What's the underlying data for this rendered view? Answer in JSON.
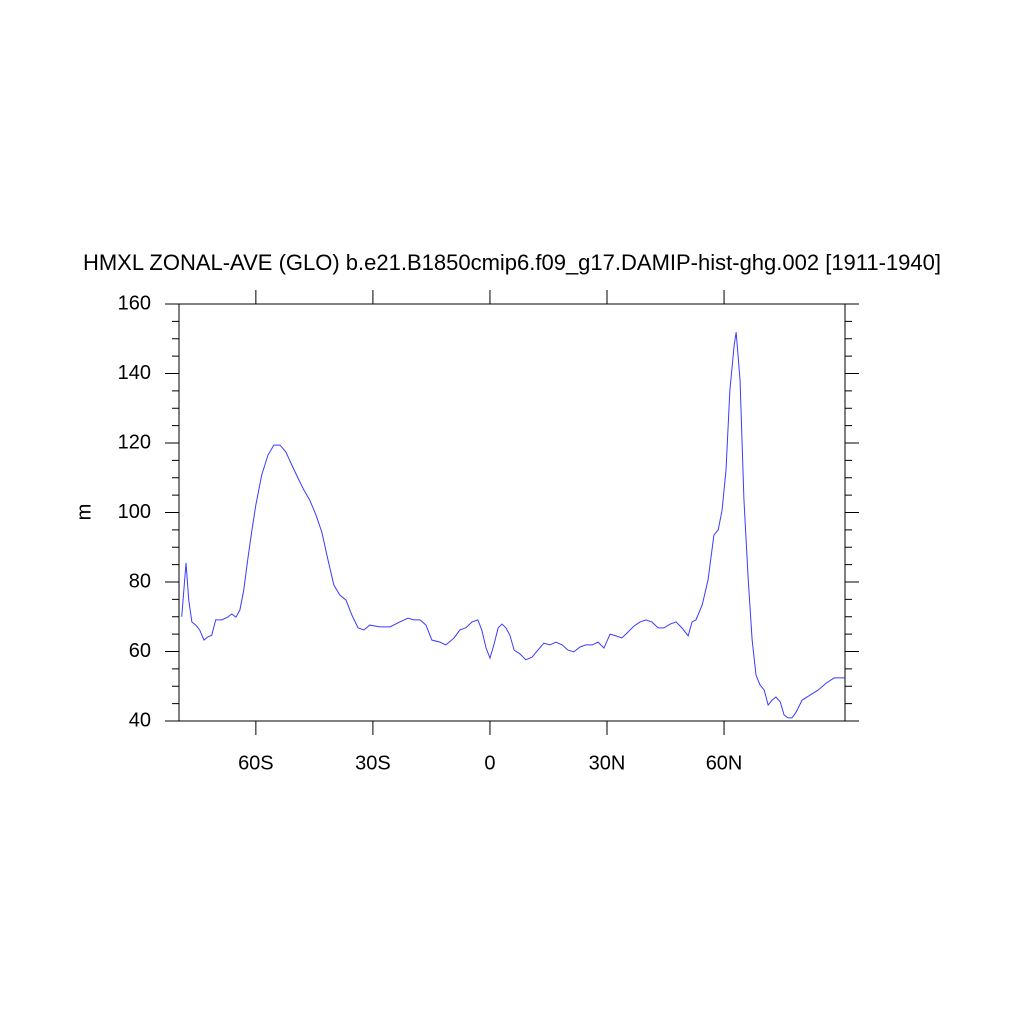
{
  "chart_data": {
    "type": "line",
    "title": "HMXL ZONAL-AVE (GLO) b.e21.B1850cmip6.f09_g17.DAMIP-hist-ghg.002 [1911-1940]",
    "y_label": "m",
    "xlim": [
      -79.7,
      91
    ],
    "ylim": [
      40,
      160
    ],
    "xticks": [
      {
        "value": -60,
        "label": "60S"
      },
      {
        "value": -30,
        "label": "30S"
      },
      0,
      {
        "value": 30,
        "label": "30N"
      },
      {
        "value": 60,
        "label": "60N"
      }
    ],
    "yticks": [
      40,
      60,
      80,
      100,
      120,
      140,
      160
    ],
    "x": [
      -79.0,
      -77.9,
      -77.2,
      -76.4,
      -75.4,
      -74.4,
      -73.3,
      -72.3,
      -71.3,
      -70.3,
      -68.7,
      -67.2,
      -66.2,
      -65.1,
      -64.1,
      -63.1,
      -62.1,
      -61.0,
      -60.0,
      -58.5,
      -56.9,
      -55.4,
      -53.8,
      -52.3,
      -50.8,
      -49.2,
      -47.7,
      -46.2,
      -44.6,
      -43.1,
      -41.5,
      -40.0,
      -38.5,
      -36.9,
      -35.4,
      -33.8,
      -32.3,
      -30.8,
      -28.2,
      -25.6,
      -23.1,
      -21.0,
      -19.5,
      -17.9,
      -16.4,
      -14.9,
      -12.8,
      -11.3,
      -9.2,
      -7.7,
      -6.2,
      -4.6,
      -3.1,
      -2.1,
      -1.0,
      0.0,
      1.0,
      2.1,
      3.1,
      4.1,
      5.1,
      6.2,
      7.7,
      9.2,
      10.8,
      12.3,
      13.8,
      15.4,
      16.9,
      18.5,
      20.0,
      21.5,
      23.1,
      24.6,
      26.2,
      27.7,
      29.2,
      30.8,
      32.3,
      33.8,
      35.4,
      36.9,
      38.5,
      40.0,
      41.5,
      43.1,
      44.6,
      46.2,
      47.7,
      49.2,
      50.8,
      51.8,
      52.8,
      54.4,
      55.9,
      57.4,
      58.5,
      59.5,
      60.5,
      61.5,
      62.6,
      63.1,
      64.1,
      65.1,
      66.2,
      67.2,
      68.2,
      69.2,
      70.3,
      71.3,
      72.3,
      73.3,
      74.4,
      75.4,
      76.4,
      77.4,
      78.5,
      80.0,
      82.1,
      84.1,
      86.2,
      88.2,
      91.0
    ],
    "series": [
      {
        "color": "#3b3bff",
        "values": [
          70.0,
          85.5,
          74.8,
          68.5,
          67.6,
          66.2,
          63.3,
          64.2,
          64.7,
          69.1,
          69.1,
          69.9,
          70.8,
          69.9,
          71.9,
          77.7,
          86.3,
          95.0,
          102.2,
          110.8,
          116.5,
          119.4,
          119.4,
          117.4,
          113.7,
          109.9,
          106.5,
          103.6,
          99.3,
          94.4,
          86.3,
          79.1,
          76.3,
          74.8,
          70.5,
          66.8,
          66.2,
          67.6,
          67.1,
          67.1,
          68.5,
          69.6,
          69.1,
          69.1,
          67.6,
          63.3,
          62.7,
          61.9,
          63.9,
          66.2,
          66.8,
          68.5,
          69.1,
          66.2,
          61.0,
          58.1,
          61.9,
          66.8,
          67.9,
          66.8,
          64.7,
          60.4,
          59.3,
          57.6,
          58.4,
          60.4,
          62.4,
          61.9,
          62.7,
          61.9,
          60.4,
          59.9,
          61.3,
          61.9,
          61.9,
          62.7,
          61.0,
          65.0,
          64.5,
          63.9,
          65.6,
          67.3,
          68.5,
          69.1,
          68.5,
          66.8,
          66.8,
          67.9,
          68.5,
          66.8,
          64.5,
          68.5,
          69.1,
          73.4,
          80.6,
          93.5,
          95.0,
          100.7,
          112.2,
          135.3,
          148.2,
          151.9,
          138.1,
          103.6,
          80.6,
          63.3,
          53.2,
          50.4,
          48.9,
          44.6,
          46.0,
          46.9,
          45.5,
          41.7,
          40.9,
          40.9,
          42.6,
          46.0,
          47.5,
          48.9,
          50.9,
          52.4,
          52.4
        ]
      }
    ]
  }
}
